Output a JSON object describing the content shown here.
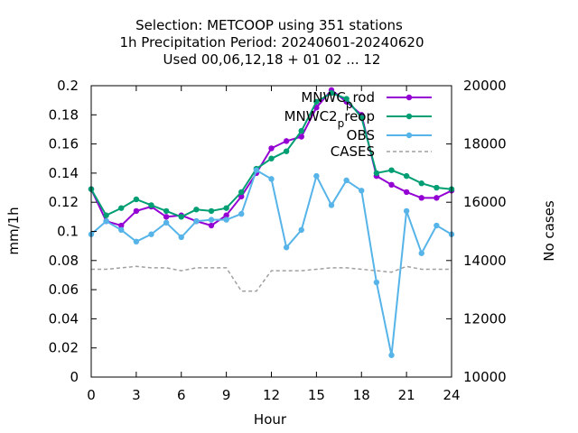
{
  "chart_data": {
    "type": "line",
    "title_lines": [
      "Selection: METCOOP using   351 stations",
      "1h Precipitation   Period: 20240601-20240620",
      "Used  00,06,12,18 + 01 02 ... 12"
    ],
    "xlabel": "Hour",
    "ylabel": "mm/1h",
    "y2label": "No cases",
    "xlim": [
      0,
      24
    ],
    "ylim": [
      0,
      0.2
    ],
    "y2lim": [
      10000,
      20000
    ],
    "x_ticks": [
      0,
      3,
      6,
      9,
      12,
      15,
      18,
      21,
      24
    ],
    "x_tick_labels": [
      "0",
      "3",
      "6",
      "9",
      "12",
      "15",
      "18",
      "21",
      "24"
    ],
    "y_ticks": [
      0,
      0.02,
      0.04,
      0.06,
      0.08,
      0.1,
      0.12,
      0.14,
      0.16,
      0.18,
      0.2
    ],
    "y_tick_labels": [
      "0",
      "0.02",
      "0.04",
      "0.06",
      "0.08",
      "0.1",
      "0.12",
      "0.14",
      "0.16",
      "0.18",
      "0.2"
    ],
    "y2_ticks": [
      10000,
      12000,
      14000,
      16000,
      18000,
      20000
    ],
    "y2_tick_labels": [
      "10000",
      "12000",
      "14000",
      "16000",
      "18000",
      "20000"
    ],
    "legend_position": "top-right",
    "grid": false,
    "x": [
      0,
      1,
      2,
      3,
      4,
      5,
      6,
      7,
      8,
      9,
      10,
      11,
      12,
      13,
      14,
      15,
      16,
      17,
      18,
      19,
      20,
      21,
      22,
      23,
      24
    ],
    "series": [
      {
        "name": "MNWC_prod",
        "legend_main": "MNWC",
        "legend_sub": "p",
        "legend_tail": "rod",
        "color": "#9400d3",
        "marker": "circle",
        "axis": "y",
        "values": [
          0.129,
          0.107,
          0.104,
          0.114,
          0.117,
          0.11,
          0.111,
          0.107,
          0.104,
          0.111,
          0.124,
          0.14,
          0.157,
          0.162,
          0.165,
          0.185,
          0.197,
          0.189,
          0.18,
          0.138,
          0.132,
          0.127,
          0.123,
          0.123,
          0.128
        ]
      },
      {
        "name": "MNWC2_preop",
        "legend_main": "MNWC2",
        "legend_sub": "p",
        "legend_tail": "reop",
        "color": "#009e73",
        "marker": "circle",
        "axis": "y",
        "values": [
          0.129,
          0.111,
          0.116,
          0.122,
          0.118,
          0.114,
          0.11,
          0.115,
          0.114,
          0.116,
          0.127,
          0.143,
          0.15,
          0.155,
          0.169,
          0.189,
          0.195,
          0.191,
          0.178,
          0.14,
          0.142,
          0.138,
          0.133,
          0.13,
          0.129
        ]
      },
      {
        "name": "OBS",
        "legend_main": "OBS",
        "color": "#56b4e9",
        "marker": "circle",
        "axis": "y",
        "values": [
          0.098,
          0.107,
          0.101,
          0.093,
          0.098,
          0.106,
          0.096,
          0.107,
          0.108,
          0.108,
          0.112,
          0.142,
          0.136,
          0.089,
          0.101,
          0.138,
          0.118,
          0.135,
          0.128,
          0.065,
          0.015,
          0.114,
          0.085,
          0.104,
          0.098
        ]
      },
      {
        "name": "CASES",
        "legend_main": "CASES",
        "color": "#a0a0a0",
        "marker": "none",
        "dashed": true,
        "axis": "y2",
        "values": [
          13700,
          13700,
          13750,
          13800,
          13750,
          13750,
          13650,
          13750,
          13750,
          13750,
          12950,
          12950,
          13650,
          13650,
          13650,
          13700,
          13750,
          13750,
          13700,
          13650,
          13600,
          13800,
          13700,
          13700,
          13700
        ]
      }
    ]
  }
}
